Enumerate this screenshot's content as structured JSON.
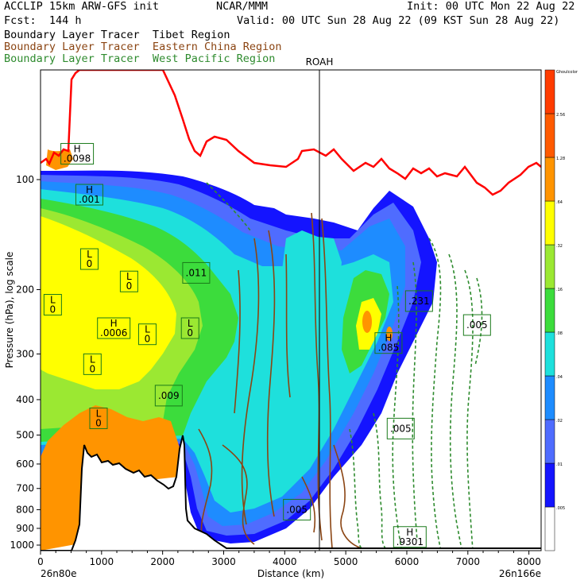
{
  "header": {
    "line1_left": "ACCLIP 15km ARW-GFS init",
    "line1_mid": "NCAR/MMM",
    "line1_right": "Init: 00 UTC Mon 22 Aug 22",
    "line2_left": "Fcst:  144 h",
    "line2_right": "Valid: 00 UTC Sun 28 Aug 22 (09 KST Sun 28 Aug 22)",
    "legend": [
      {
        "text": "Boundary Layer Tracer  Tibet Region",
        "color": "#000000"
      },
      {
        "text": "Boundary Layer Tracer  Eastern China Region",
        "color": "#8B4513"
      },
      {
        "text": "Boundary Layer Tracer  West Pacific Region",
        "color": "#2e8b2e"
      }
    ]
  },
  "chart_data": {
    "type": "heatmap",
    "xlabel": "Distance (km)",
    "ylabel": "Pressure (hPa), log scale",
    "x_ticks": [
      "0",
      "1000",
      "2000",
      "3000",
      "4000",
      "5000",
      "6000",
      "7000",
      "8000"
    ],
    "y_ticks": [
      "100",
      "200",
      "300",
      "400",
      "500",
      "600",
      "700",
      "800",
      "900",
      "1000"
    ],
    "x_endpoints": {
      "left": "26n80e",
      "right": "26n166e"
    },
    "marker_label": "ROAH",
    "marker_x_km": 4550,
    "colorbar": {
      "levels": [
        ".005",
        ".01",
        ".02",
        ".04",
        ".08",
        ".16",
        ".32",
        ".64",
        "1.28",
        "2.56",
        "Ghoulcolor"
      ],
      "colors": [
        "#ffffff",
        "#1414ff",
        "#4f6cff",
        "#1e8cff",
        "#1ee0dc",
        "#3cdc3c",
        "#9be832",
        "#ffff00",
        "#ff9400",
        "#ff5a00",
        "#ff3c00"
      ]
    },
    "contour_labels": [
      {
        "text": "H",
        "value": ".0098",
        "x_km": 600,
        "p": 85
      },
      {
        "text": "H",
        "value": ".001",
        "x_km": 800,
        "p": 110
      },
      {
        "text": "L",
        "value": "0",
        "x_km": 800,
        "p": 165
      },
      {
        "text": "L",
        "value": "0",
        "x_km": 1450,
        "p": 190
      },
      {
        "text": "L",
        "value": "0",
        "x_km": 200,
        "p": 220
      },
      {
        "text": "H",
        "value": ".0006",
        "x_km": 1200,
        "p": 255
      },
      {
        "text": "L",
        "value": "0",
        "x_km": 1750,
        "p": 265
      },
      {
        "text": "L",
        "value": "0",
        "x_km": 2450,
        "p": 255
      },
      {
        "text": "L",
        "value": "0",
        "x_km": 850,
        "p": 320
      },
      {
        "text": "L",
        "value": "0",
        "x_km": 950,
        "p": 450
      },
      {
        "text": "",
        "value": ".009",
        "x_km": 2100,
        "p": 390
      },
      {
        "text": "",
        "value": ".011",
        "x_km": 2550,
        "p": 180
      },
      {
        "text": "",
        "value": ".231",
        "x_km": 6200,
        "p": 215
      },
      {
        "text": "",
        "value": ".005",
        "x_km": 7150,
        "p": 250
      },
      {
        "text": "H",
        "value": ".9301",
        "x_km": 6050,
        "p": 950
      },
      {
        "text": "H",
        "value": ".085",
        "x_km": 5700,
        "p": 280
      },
      {
        "text": "",
        "value": ".005",
        "x_km": 5900,
        "p": 480
      },
      {
        "text": "",
        "value": ".005",
        "x_km": 4200,
        "p": 800
      }
    ],
    "top_red_line_hpa_note": "",
    "series": []
  }
}
